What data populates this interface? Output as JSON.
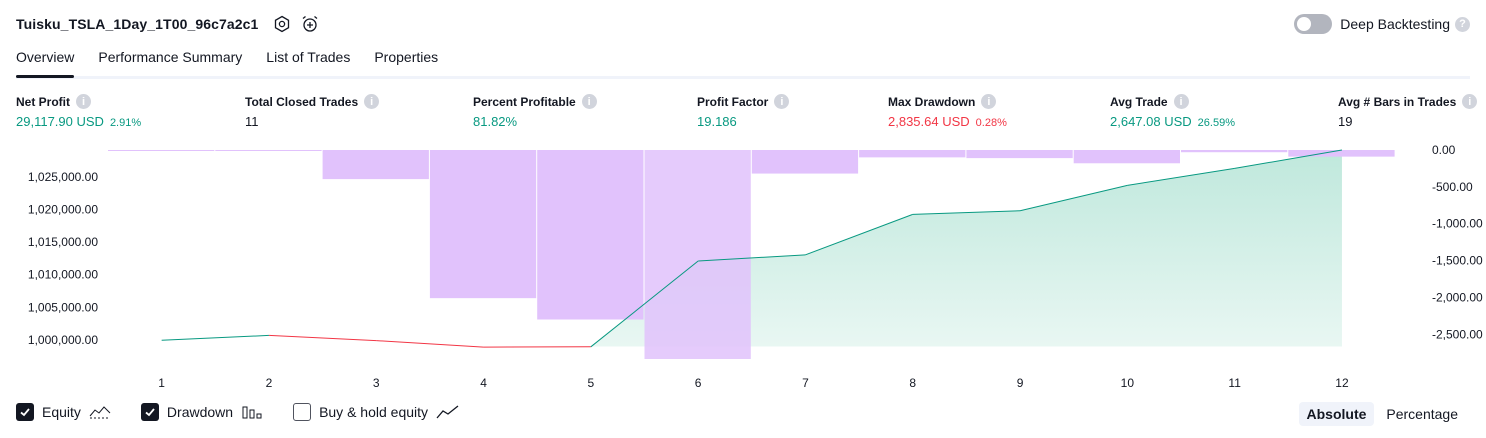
{
  "header": {
    "strategy_title": "Tuisku_TSLA_1Day_1T00_96c7a2c1",
    "icons": [
      "settings-icon",
      "alarm-add-icon"
    ],
    "deep_backtesting": {
      "label": "Deep Backtesting",
      "enabled": false
    }
  },
  "tabs": [
    {
      "label": "Overview",
      "active": true
    },
    {
      "label": "Performance Summary",
      "active": false
    },
    {
      "label": "List of Trades",
      "active": false
    },
    {
      "label": "Properties",
      "active": false
    }
  ],
  "metrics": [
    {
      "label": "Net Profit",
      "value": "29,117.90 USD",
      "pct": "2.91%",
      "color": "green"
    },
    {
      "label": "Total Closed Trades",
      "value": "11",
      "pct": "",
      "color": "dark"
    },
    {
      "label": "Percent Profitable",
      "value": "81.82%",
      "pct": "",
      "color": "green"
    },
    {
      "label": "Profit Factor",
      "value": "19.186",
      "pct": "",
      "color": "green"
    },
    {
      "label": "Max Drawdown",
      "value": "2,835.64 USD",
      "pct": "0.28%",
      "color": "red"
    },
    {
      "label": "Avg Trade",
      "value": "2,647.08 USD",
      "pct": "26.59%",
      "color": "green"
    },
    {
      "label": "Avg # Bars in Trades",
      "value": "19",
      "pct": "",
      "color": "dark"
    }
  ],
  "colors": {
    "equity_up": "#089981",
    "equity_down": "#f23645",
    "drawdown_bar": "#e1c2fc",
    "drawdown_overlap": "#b8b6f0",
    "equity_fill_top": "#bfe8dc",
    "text": "#131722",
    "axis_text": "#131722"
  },
  "chart_data": {
    "type": "area",
    "x": [
      1,
      2,
      3,
      4,
      5,
      6,
      7,
      8,
      9,
      10,
      11,
      12
    ],
    "series": [
      {
        "name": "Equity",
        "axis": "left",
        "values": [
          999950,
          1000700,
          999900,
          998900,
          998950,
          1012100,
          1013050,
          1019250,
          1019800,
          1023700,
          1026300,
          1029118
        ]
      },
      {
        "name": "Drawdown",
        "axis": "right",
        "type": "bar",
        "values": [
          -5,
          -3,
          -395,
          -2010,
          -2300,
          -2835.64,
          -320,
          -100,
          -110,
          -180,
          -30,
          -90
        ]
      }
    ],
    "left_axis": {
      "ticks": [
        "1,000,000.00",
        "1,005,000.00",
        "1,010,000.00",
        "1,015,000.00",
        "1,020,000.00",
        "1,025,000.00"
      ],
      "range": [
        998000,
        1029118
      ]
    },
    "right_axis": {
      "ticks": [
        "0.00",
        "-500.00",
        "-1,000.00",
        "-1,500.00",
        "-2,000.00",
        "-2,500.00"
      ],
      "range": [
        -2835.64,
        0
      ]
    },
    "xlabel": "",
    "ylabel": "",
    "grid": false
  },
  "legend": [
    {
      "label": "Equity",
      "checked": true,
      "icon": "equity-line-icon"
    },
    {
      "label": "Drawdown",
      "checked": true,
      "icon": "drawdown-bars-icon"
    },
    {
      "label": "Buy & hold equity",
      "checked": false,
      "icon": "buy-hold-line-icon"
    }
  ],
  "mode": {
    "options": [
      "Absolute",
      "Percentage"
    ],
    "active": "Absolute"
  }
}
